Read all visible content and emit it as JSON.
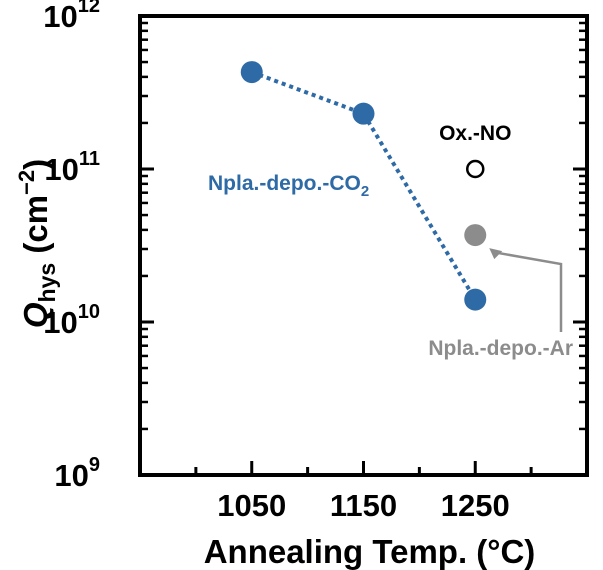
{
  "chart_data": {
    "type": "scatter",
    "xlabel": "Annealing Temp. (°C)",
    "ylabel": {
      "main": "Q",
      "sub": "hys",
      "unit_prefix": " (cm",
      "unit_sup": "−2",
      "unit_suffix": ")"
    },
    "xlim": [
      950,
      1350
    ],
    "ylim": [
      1000000000.0,
      1000000000000.0
    ],
    "yscale": "log",
    "grid": false,
    "x_ticks": [
      {
        "value": 1050,
        "label": "1050"
      },
      {
        "value": 1150,
        "label": "1150"
      },
      {
        "value": 1250,
        "label": "1250"
      }
    ],
    "y_ticks": [
      {
        "value": 1000000000.0,
        "base": "10",
        "exp": "9"
      },
      {
        "value": 10000000000.0,
        "base": "10",
        "exp": "10"
      },
      {
        "value": 100000000000.0,
        "base": "10",
        "exp": "11"
      },
      {
        "value": 1000000000000.0,
        "base": "10",
        "exp": "12"
      }
    ],
    "series": [
      {
        "name": "Npla.-depo.-CO2",
        "label_main": "Npla.-depo.-CO",
        "label_sub": "2",
        "color": "#2e6aa6",
        "marker": "filled-circle",
        "line": "dotted",
        "points": [
          {
            "x": 1050,
            "y": 430000000000.0
          },
          {
            "x": 1150,
            "y": 230000000000.0
          },
          {
            "x": 1250,
            "y": 14000000000.0
          }
        ]
      },
      {
        "name": "Ox.-NO",
        "label_main": "Ox.-NO",
        "color": "#000000",
        "marker": "open-circle",
        "points": [
          {
            "x": 1250,
            "y": 100000000000.0
          }
        ]
      },
      {
        "name": "Npla.-depo.-Ar",
        "label_main": "Npla.-depo.-Ar",
        "color": "#8c8c8c",
        "marker": "filled-circle",
        "points": [
          {
            "x": 1250,
            "y": 37000000000.0
          }
        ]
      }
    ]
  }
}
